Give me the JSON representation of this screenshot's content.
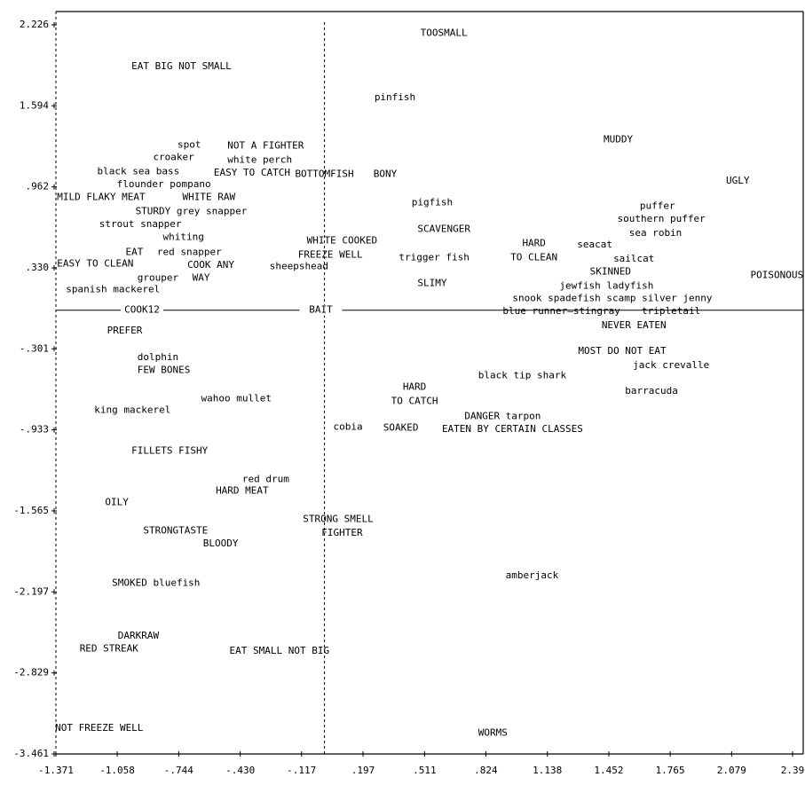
{
  "chart_data": {
    "type": "scatter",
    "xlim": [
      -1.371,
      2.39
    ],
    "ylim": [
      -3.461,
      2.226
    ],
    "xticks": [
      -1.371,
      -1.058,
      {
        "value": -0.744,
        "label": "-.744"
      },
      {
        "value": -0.43,
        "label": "-.430"
      },
      {
        "value": -0.117,
        "label": "-.117"
      },
      {
        "value": 0.197,
        "label": ".197"
      },
      {
        "value": 0.511,
        "label": ".511"
      },
      {
        "value": 0.824,
        "label": ".824"
      },
      1.138,
      1.452,
      1.765,
      2.079,
      2.39
    ],
    "yticks": [
      2.226,
      1.594,
      {
        "value": 0.962,
        "label": ".962"
      },
      {
        "value": 0.33,
        "label": ".330"
      },
      {
        "value": -0.301,
        "label": "-.301"
      },
      {
        "value": -0.933,
        "label": "-.933"
      },
      -1.565,
      -2.197,
      -2.829,
      -3.461
    ],
    "h_axis_labels": [
      "COOK12",
      "BAIT"
    ],
    "color": "#000000",
    "labels": [
      "TOOSMALL",
      "EAT BIG NOT SMALL",
      "pinfish",
      "MUDDY",
      "spot",
      "NOT A FIGHTER",
      "croaker",
      "white perch",
      "black sea bass",
      "EASY TO CATCH",
      "BOTTOMFISH",
      "BONY",
      "UGLY",
      "flounder pompano",
      "MILD  FLAKY MEAT",
      "WHITE RAW",
      "pigfish",
      "puffer",
      "STURDY grey snapper",
      "southern puffer",
      "strout  snapper",
      "SCAVENGER",
      "sea robin",
      "whiting",
      "WHITE COOKED",
      "HARD",
      "seacat",
      "EAT",
      "red snapper",
      "FREEZE WELL",
      "trigger fish",
      "TO CLEAN",
      "sailcat",
      "EASY TO CLEAN",
      "COOK ANY",
      "sheepshead",
      "SKINNED",
      "POISONOUS",
      "grouper",
      "WAY",
      "SLIMY",
      "jewfish  ladyfish",
      "spanish mackerel",
      "snook spadefish scamp silver jenny",
      "blue runner—stingray",
      "tripletail",
      "NEVER EATEN",
      "PREFER",
      "MOST DO NOT EAT",
      "dolphin",
      "jack crevalle",
      "FEW BONES",
      "black tip shark",
      "HARD",
      "barracuda",
      "TO CATCH",
      "wahoo  mullet",
      "king mackerel",
      "DANGER   tarpon",
      "cobia",
      "SOAKED",
      "EATEN BY CERTAIN CLASSES",
      "FILLETS   FISHY",
      "red drum",
      "HARD MEAT",
      "OILY",
      "STRONG SMELL",
      "STRONGTASTE",
      "FIGHTER",
      "BLOODY",
      "amberjack",
      "SMOKED bluefish",
      "DARKRAW",
      "RED STREAK",
      "EAT SMALL NOT BIG",
      "NOT FREEZE WELL",
      "WORMS"
    ],
    "x": [
      0.61,
      -0.73,
      0.36,
      1.5,
      -0.69,
      -0.3,
      -0.77,
      -0.33,
      -0.95,
      -0.37,
      0.0,
      0.31,
      2.11,
      -0.82,
      -1.14,
      -0.59,
      0.55,
      1.7,
      -0.68,
      1.72,
      -0.94,
      0.61,
      1.69,
      -0.72,
      0.09,
      1.07,
      1.38,
      -0.97,
      -0.69,
      0.03,
      0.56,
      1.07,
      1.58,
      -1.17,
      -0.58,
      -0.13,
      1.46,
      2.31,
      -0.85,
      -0.63,
      0.55,
      1.44,
      -1.08,
      1.47,
      1.21,
      1.77,
      1.58,
      -1.02,
      1.52,
      -0.85,
      1.77,
      -0.82,
      1.01,
      0.46,
      1.67,
      0.46,
      -0.45,
      -0.98,
      0.91,
      0.12,
      0.39,
      0.96,
      -0.79,
      -0.3,
      -0.42,
      -1.06,
      0.07,
      -0.76,
      0.09,
      -0.53,
      1.06,
      -0.86,
      -0.95,
      -1.1,
      -0.23,
      -1.15,
      0.86
    ],
    "values": [
      2.16,
      1.9,
      1.66,
      1.33,
      1.29,
      1.28,
      1.19,
      1.17,
      1.08,
      1.07,
      1.06,
      1.06,
      1.01,
      0.98,
      0.88,
      0.88,
      0.84,
      0.81,
      0.77,
      0.71,
      0.67,
      0.63,
      0.6,
      0.57,
      0.54,
      0.52,
      0.51,
      0.45,
      0.45,
      0.43,
      0.41,
      0.41,
      0.4,
      0.36,
      0.35,
      0.34,
      0.3,
      0.27,
      0.25,
      0.25,
      0.21,
      0.19,
      0.16,
      0.09,
      -0.01,
      -0.01,
      -0.12,
      -0.16,
      -0.32,
      -0.37,
      -0.43,
      -0.47,
      -0.51,
      -0.6,
      -0.63,
      -0.71,
      -0.69,
      -0.78,
      -0.83,
      -0.91,
      -0.92,
      -0.93,
      -1.1,
      -1.32,
      -1.41,
      -1.5,
      -1.63,
      -1.72,
      -1.74,
      -1.82,
      -2.07,
      -2.13,
      -2.54,
      -2.64,
      -2.66,
      -3.26,
      -3.3
    ]
  }
}
